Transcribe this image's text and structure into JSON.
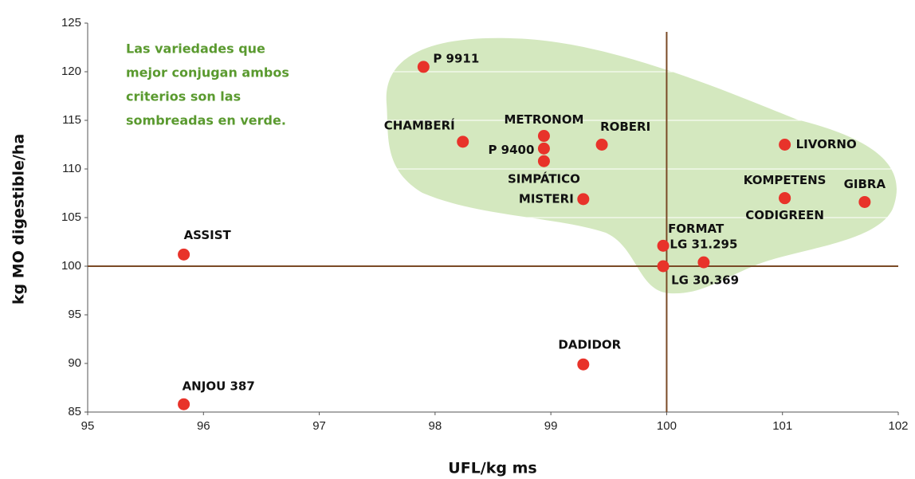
{
  "chart_data": {
    "type": "scatter",
    "x_label": "UFL/kg ms",
    "y_label": "kg MO digestible/ha",
    "annotation": [
      "Las variedades que",
      "mejor conjugan ambos",
      "criterios son las",
      "sombreadas en verde."
    ],
    "color": "#e8332a",
    "grid": true,
    "grid_color": "#ffffff",
    "region_color": "#d4e8bf",
    "ref_color": "#7a4a26",
    "xlim": [
      95,
      102
    ],
    "xticks": [
      95,
      96,
      97,
      98,
      99,
      100,
      101,
      102
    ],
    "ylim": [
      85,
      125
    ],
    "yticks": [
      85,
      90,
      95,
      100,
      105,
      110,
      115,
      120,
      125
    ],
    "xref": 100,
    "yref": 100,
    "points": [
      {
        "name": "P 9911",
        "x": 97.9,
        "y": 120.5
      },
      {
        "name": "CHAMBERÍ",
        "x": 98.24,
        "y": 112.8
      },
      {
        "name": "METRONOM",
        "x": 98.94,
        "y": 113.4
      },
      {
        "name": "P 9400",
        "x": 98.94,
        "y": 112.1
      },
      {
        "name": "SIMPÁTICO",
        "x": 98.94,
        "y": 110.8
      },
      {
        "name": "ROBERI",
        "x": 99.44,
        "y": 112.5
      },
      {
        "name": "LIVORNO",
        "x": 101.02,
        "y": 112.5
      },
      {
        "name": "KOMPETENS",
        "x": 101.02,
        "y": 107.0
      },
      {
        "name": "CODIGREEN",
        "x": 101.02,
        "y": 107.0
      },
      {
        "name": "GIBRA",
        "x": 101.71,
        "y": 106.6
      },
      {
        "name": "MISTERI",
        "x": 99.28,
        "y": 106.9
      },
      {
        "name": "FORMAT",
        "x": 99.97,
        "y": 102.1
      },
      {
        "name": "LG 31.295",
        "x": 100.32,
        "y": 100.4
      },
      {
        "name": "LG 30.369",
        "x": 99.97,
        "y": 100.0
      },
      {
        "name": "ASSIST",
        "x": 95.83,
        "y": 101.2
      },
      {
        "name": "DADIDOR",
        "x": 99.28,
        "y": 89.9
      },
      {
        "name": "ANJOU 387",
        "x": 95.83,
        "y": 85.8
      }
    ]
  }
}
